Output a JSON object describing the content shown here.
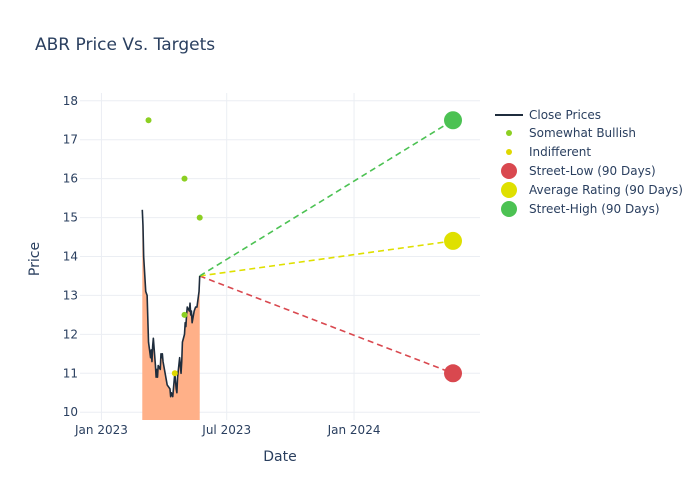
{
  "chart_data": {
    "type": "line",
    "title": "ABR Price Vs. Targets",
    "xlabel": "Date",
    "ylabel": "Price",
    "xlim": [
      "2022-12-01",
      "2024-07-01"
    ],
    "ylim": [
      9.8,
      18.2
    ],
    "x_ticks": [
      {
        "date": "2023-01-01",
        "label": "Jan 2023"
      },
      {
        "date": "2023-07-01",
        "label": "Jul 2023"
      },
      {
        "date": "2024-01-01",
        "label": "Jan 2024"
      }
    ],
    "y_ticks": [
      10,
      11,
      12,
      13,
      14,
      15,
      16,
      17,
      18
    ],
    "grid": true,
    "legend_position": "right",
    "colors": {
      "close": "#1f2d3d",
      "fill": "#ffb088",
      "somewhat_bullish": "#8ccf22",
      "indifferent": "#dfd800",
      "street_low": "#d9484f",
      "average": "#dfe000",
      "street_high": "#4cc253",
      "grid": "#ebeef3",
      "zero_line": "#ebeef3"
    },
    "series": [
      {
        "name": "Close Prices",
        "kind": "line-area",
        "points": [
          [
            "2023-03-01",
            15.2
          ],
          [
            "2023-03-02",
            14.8
          ],
          [
            "2023-03-03",
            14.0
          ],
          [
            "2023-03-06",
            13.1
          ],
          [
            "2023-03-08",
            13.0
          ],
          [
            "2023-03-09",
            12.4
          ],
          [
            "2023-03-10",
            11.8
          ],
          [
            "2023-03-13",
            11.4
          ],
          [
            "2023-03-14",
            11.6
          ],
          [
            "2023-03-15",
            11.3
          ],
          [
            "2023-03-16",
            11.7
          ],
          [
            "2023-03-17",
            11.9
          ],
          [
            "2023-03-20",
            11.2
          ],
          [
            "2023-03-21",
            10.9
          ],
          [
            "2023-03-22",
            11.1
          ],
          [
            "2023-03-23",
            10.9
          ],
          [
            "2023-03-24",
            11.2
          ],
          [
            "2023-03-27",
            11.1
          ],
          [
            "2023-03-28",
            11.5
          ],
          [
            "2023-03-29",
            11.4
          ],
          [
            "2023-03-30",
            11.5
          ],
          [
            "2023-03-31",
            11.3
          ],
          [
            "2023-04-03",
            11.0
          ],
          [
            "2023-04-05",
            10.8
          ],
          [
            "2023-04-06",
            10.7
          ],
          [
            "2023-04-10",
            10.6
          ],
          [
            "2023-04-11",
            10.4
          ],
          [
            "2023-04-12",
            10.5
          ],
          [
            "2023-04-14",
            10.4
          ],
          [
            "2023-04-17",
            11.0
          ],
          [
            "2023-04-18",
            10.8
          ],
          [
            "2023-04-19",
            10.6
          ],
          [
            "2023-04-20",
            10.5
          ],
          [
            "2023-04-21",
            10.9
          ],
          [
            "2023-04-24",
            11.4
          ],
          [
            "2023-04-25",
            11.2
          ],
          [
            "2023-04-26",
            11.0
          ],
          [
            "2023-04-27",
            11.3
          ],
          [
            "2023-04-28",
            11.8
          ],
          [
            "2023-05-01",
            12.0
          ],
          [
            "2023-05-02",
            12.3
          ],
          [
            "2023-05-03",
            12.2
          ],
          [
            "2023-05-04",
            12.5
          ],
          [
            "2023-05-05",
            12.7
          ],
          [
            "2023-05-08",
            12.6
          ],
          [
            "2023-05-09",
            12.8
          ],
          [
            "2023-05-10",
            12.5
          ],
          [
            "2023-05-11",
            12.6
          ],
          [
            "2023-05-12",
            12.3
          ],
          [
            "2023-05-15",
            12.6
          ],
          [
            "2023-05-17",
            12.7
          ],
          [
            "2023-05-19",
            12.7
          ],
          [
            "2023-05-22",
            13.1
          ],
          [
            "2023-05-23",
            13.5
          ]
        ]
      },
      {
        "name": "Somewhat Bullish",
        "kind": "markers",
        "points": [
          [
            "2023-03-10",
            17.5
          ],
          [
            "2023-05-01",
            16.0
          ],
          [
            "2023-05-23",
            15.0
          ],
          [
            "2023-05-01",
            12.5
          ]
        ]
      },
      {
        "name": "Indifferent",
        "kind": "markers",
        "points": [
          [
            "2023-04-17",
            11.0
          ]
        ]
      },
      {
        "name": "Street-Low (90 Days)",
        "kind": "target",
        "start": [
          "2023-05-23",
          13.5
        ],
        "end": [
          "2024-05-23",
          11.0
        ]
      },
      {
        "name": "Average Rating (90 Days)",
        "kind": "target",
        "start": [
          "2023-05-23",
          13.5
        ],
        "end": [
          "2024-05-23",
          14.4
        ]
      },
      {
        "name": "Street-High (90 Days)",
        "kind": "target",
        "start": [
          "2023-05-23",
          13.5
        ],
        "end": [
          "2024-05-23",
          17.5
        ]
      }
    ]
  }
}
